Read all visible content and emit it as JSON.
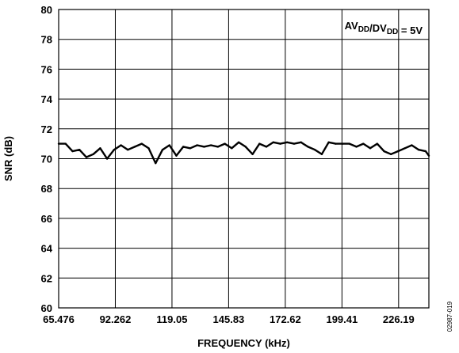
{
  "chart_data": {
    "type": "line",
    "xlabel": "FREQUENCY (kHz)",
    "ylabel": "SNR (dB)",
    "ylim": [
      60,
      80
    ],
    "xlim": [
      65.476,
      240.5
    ],
    "y_ticks": [
      "60",
      "62",
      "64",
      "66",
      "68",
      "70",
      "72",
      "74",
      "76",
      "78",
      "80"
    ],
    "x_ticks": [
      "65.476",
      "92.262",
      "119.05",
      "145.83",
      "172.62",
      "199.41",
      "226.19"
    ],
    "grid": true,
    "annotation": {
      "parts": [
        {
          "text": "AV",
          "sub": false
        },
        {
          "text": "DD",
          "sub": true
        },
        {
          "text": "/DV",
          "sub": false
        },
        {
          "text": "DD",
          "sub": true
        },
        {
          "text": " = 5V",
          "sub": false
        }
      ],
      "position": "top-right"
    },
    "figure_id": "02987-019",
    "series": [
      {
        "x": [
          65.48,
          68.75,
          72.02,
          75.3,
          78.57,
          81.84,
          85.12,
          88.39,
          91.66,
          94.94,
          98.21,
          101.48,
          104.76,
          108.03,
          111.3,
          114.58,
          117.85,
          121.12,
          124.4,
          127.67,
          130.94,
          134.22,
          137.49,
          140.76,
          144.04,
          147.31,
          150.58,
          153.86,
          157.13,
          160.4,
          163.68,
          166.95,
          170.22,
          173.5,
          176.77,
          180.04,
          183.32,
          186.59,
          189.86,
          193.14,
          196.41,
          199.68,
          202.96,
          206.23,
          209.5,
          212.78,
          216.05,
          219.32,
          222.6,
          225.87,
          229.14,
          232.42,
          235.69,
          238.96,
          240.5
        ],
        "values": [
          71.0,
          71.0,
          70.5,
          70.6,
          70.1,
          70.3,
          70.7,
          70.0,
          70.6,
          70.9,
          70.6,
          70.8,
          71.0,
          70.7,
          69.7,
          70.6,
          70.9,
          70.2,
          70.8,
          70.7,
          70.9,
          70.8,
          70.9,
          70.8,
          71.0,
          70.7,
          71.1,
          70.8,
          70.3,
          71.0,
          70.8,
          71.1,
          71.0,
          71.1,
          71.0,
          71.1,
          70.8,
          70.6,
          70.3,
          71.1,
          71.0,
          71.0,
          71.0,
          70.8,
          71.0,
          70.7,
          71.0,
          70.5,
          70.3,
          70.5,
          70.7,
          70.9,
          70.6,
          70.5,
          70.2
        ]
      }
    ]
  }
}
